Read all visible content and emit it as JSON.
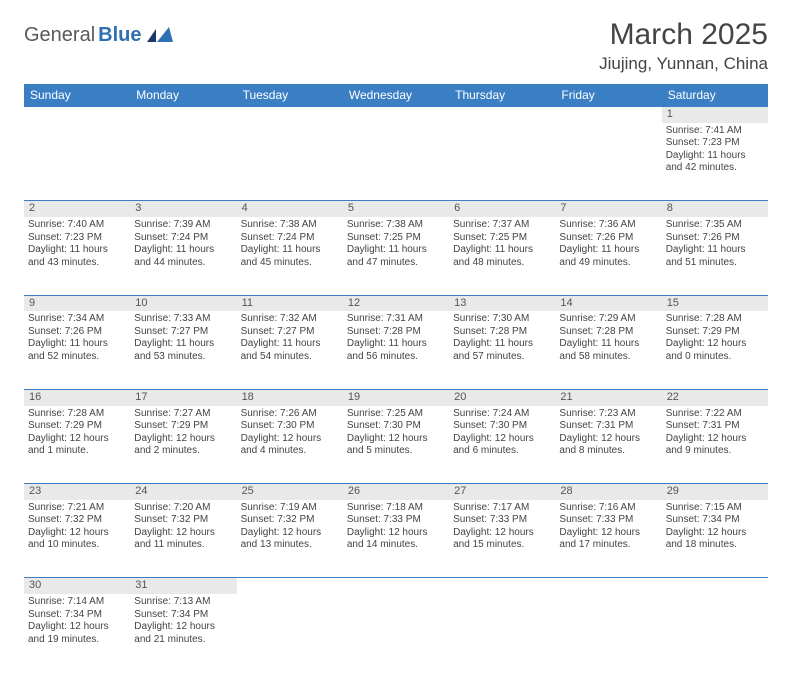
{
  "brand": {
    "name_gray": "General",
    "name_blue": "Blue",
    "blue_color": "#2f6fb3"
  },
  "header": {
    "month_title": "March 2025",
    "location": "Jiujing, Yunnan, China"
  },
  "colors": {
    "header_bg": "#3a7fc4",
    "header_text": "#ffffff",
    "daynum_bg": "#e9e9e9",
    "cell_text": "#444444",
    "rule": "#3a7fc4"
  },
  "day_headers": [
    "Sunday",
    "Monday",
    "Tuesday",
    "Wednesday",
    "Thursday",
    "Friday",
    "Saturday"
  ],
  "weeks": [
    [
      null,
      null,
      null,
      null,
      null,
      null,
      {
        "n": "1",
        "sunrise": "Sunrise: 7:41 AM",
        "sunset": "Sunset: 7:23 PM",
        "daylight": "Daylight: 11 hours and 42 minutes."
      }
    ],
    [
      {
        "n": "2",
        "sunrise": "Sunrise: 7:40 AM",
        "sunset": "Sunset: 7:23 PM",
        "daylight": "Daylight: 11 hours and 43 minutes."
      },
      {
        "n": "3",
        "sunrise": "Sunrise: 7:39 AM",
        "sunset": "Sunset: 7:24 PM",
        "daylight": "Daylight: 11 hours and 44 minutes."
      },
      {
        "n": "4",
        "sunrise": "Sunrise: 7:38 AM",
        "sunset": "Sunset: 7:24 PM",
        "daylight": "Daylight: 11 hours and 45 minutes."
      },
      {
        "n": "5",
        "sunrise": "Sunrise: 7:38 AM",
        "sunset": "Sunset: 7:25 PM",
        "daylight": "Daylight: 11 hours and 47 minutes."
      },
      {
        "n": "6",
        "sunrise": "Sunrise: 7:37 AM",
        "sunset": "Sunset: 7:25 PM",
        "daylight": "Daylight: 11 hours and 48 minutes."
      },
      {
        "n": "7",
        "sunrise": "Sunrise: 7:36 AM",
        "sunset": "Sunset: 7:26 PM",
        "daylight": "Daylight: 11 hours and 49 minutes."
      },
      {
        "n": "8",
        "sunrise": "Sunrise: 7:35 AM",
        "sunset": "Sunset: 7:26 PM",
        "daylight": "Daylight: 11 hours and 51 minutes."
      }
    ],
    [
      {
        "n": "9",
        "sunrise": "Sunrise: 7:34 AM",
        "sunset": "Sunset: 7:26 PM",
        "daylight": "Daylight: 11 hours and 52 minutes."
      },
      {
        "n": "10",
        "sunrise": "Sunrise: 7:33 AM",
        "sunset": "Sunset: 7:27 PM",
        "daylight": "Daylight: 11 hours and 53 minutes."
      },
      {
        "n": "11",
        "sunrise": "Sunrise: 7:32 AM",
        "sunset": "Sunset: 7:27 PM",
        "daylight": "Daylight: 11 hours and 54 minutes."
      },
      {
        "n": "12",
        "sunrise": "Sunrise: 7:31 AM",
        "sunset": "Sunset: 7:28 PM",
        "daylight": "Daylight: 11 hours and 56 minutes."
      },
      {
        "n": "13",
        "sunrise": "Sunrise: 7:30 AM",
        "sunset": "Sunset: 7:28 PM",
        "daylight": "Daylight: 11 hours and 57 minutes."
      },
      {
        "n": "14",
        "sunrise": "Sunrise: 7:29 AM",
        "sunset": "Sunset: 7:28 PM",
        "daylight": "Daylight: 11 hours and 58 minutes."
      },
      {
        "n": "15",
        "sunrise": "Sunrise: 7:28 AM",
        "sunset": "Sunset: 7:29 PM",
        "daylight": "Daylight: 12 hours and 0 minutes."
      }
    ],
    [
      {
        "n": "16",
        "sunrise": "Sunrise: 7:28 AM",
        "sunset": "Sunset: 7:29 PM",
        "daylight": "Daylight: 12 hours and 1 minute."
      },
      {
        "n": "17",
        "sunrise": "Sunrise: 7:27 AM",
        "sunset": "Sunset: 7:29 PM",
        "daylight": "Daylight: 12 hours and 2 minutes."
      },
      {
        "n": "18",
        "sunrise": "Sunrise: 7:26 AM",
        "sunset": "Sunset: 7:30 PM",
        "daylight": "Daylight: 12 hours and 4 minutes."
      },
      {
        "n": "19",
        "sunrise": "Sunrise: 7:25 AM",
        "sunset": "Sunset: 7:30 PM",
        "daylight": "Daylight: 12 hours and 5 minutes."
      },
      {
        "n": "20",
        "sunrise": "Sunrise: 7:24 AM",
        "sunset": "Sunset: 7:30 PM",
        "daylight": "Daylight: 12 hours and 6 minutes."
      },
      {
        "n": "21",
        "sunrise": "Sunrise: 7:23 AM",
        "sunset": "Sunset: 7:31 PM",
        "daylight": "Daylight: 12 hours and 8 minutes."
      },
      {
        "n": "22",
        "sunrise": "Sunrise: 7:22 AM",
        "sunset": "Sunset: 7:31 PM",
        "daylight": "Daylight: 12 hours and 9 minutes."
      }
    ],
    [
      {
        "n": "23",
        "sunrise": "Sunrise: 7:21 AM",
        "sunset": "Sunset: 7:32 PM",
        "daylight": "Daylight: 12 hours and 10 minutes."
      },
      {
        "n": "24",
        "sunrise": "Sunrise: 7:20 AM",
        "sunset": "Sunset: 7:32 PM",
        "daylight": "Daylight: 12 hours and 11 minutes."
      },
      {
        "n": "25",
        "sunrise": "Sunrise: 7:19 AM",
        "sunset": "Sunset: 7:32 PM",
        "daylight": "Daylight: 12 hours and 13 minutes."
      },
      {
        "n": "26",
        "sunrise": "Sunrise: 7:18 AM",
        "sunset": "Sunset: 7:33 PM",
        "daylight": "Daylight: 12 hours and 14 minutes."
      },
      {
        "n": "27",
        "sunrise": "Sunrise: 7:17 AM",
        "sunset": "Sunset: 7:33 PM",
        "daylight": "Daylight: 12 hours and 15 minutes."
      },
      {
        "n": "28",
        "sunrise": "Sunrise: 7:16 AM",
        "sunset": "Sunset: 7:33 PM",
        "daylight": "Daylight: 12 hours and 17 minutes."
      },
      {
        "n": "29",
        "sunrise": "Sunrise: 7:15 AM",
        "sunset": "Sunset: 7:34 PM",
        "daylight": "Daylight: 12 hours and 18 minutes."
      }
    ],
    [
      {
        "n": "30",
        "sunrise": "Sunrise: 7:14 AM",
        "sunset": "Sunset: 7:34 PM",
        "daylight": "Daylight: 12 hours and 19 minutes."
      },
      {
        "n": "31",
        "sunrise": "Sunrise: 7:13 AM",
        "sunset": "Sunset: 7:34 PM",
        "daylight": "Daylight: 12 hours and 21 minutes."
      },
      null,
      null,
      null,
      null,
      null
    ]
  ]
}
